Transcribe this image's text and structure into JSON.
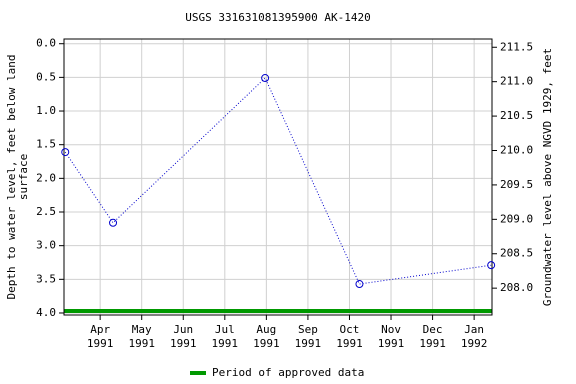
{
  "chart_data": {
    "type": "line",
    "title": "USGS 331631081395900 AK-1420",
    "y_label": [
      "Depth to water level, feet below land",
      "surface"
    ],
    "y2_label": "Groundwater level above NGVD 1929, feet",
    "x": [
      3.16,
      4.31,
      7.97,
      10.24,
      13.41
    ],
    "series": [
      {
        "name": "Depth to water level",
        "color": "#0000cc",
        "values": [
          1.61,
          2.66,
          0.51,
          3.57,
          3.29
        ]
      }
    ],
    "xlim": [
      3.13,
      13.43
    ],
    "xticks": [
      {
        "value": 4,
        "label": [
          "Apr",
          "1991"
        ]
      },
      {
        "value": 5,
        "label": [
          "May",
          "1991"
        ]
      },
      {
        "value": 6,
        "label": [
          "Jun",
          "1991"
        ]
      },
      {
        "value": 7,
        "label": [
          "Jul",
          "1991"
        ]
      },
      {
        "value": 8,
        "label": [
          "Aug",
          "1991"
        ]
      },
      {
        "value": 9,
        "label": [
          "Sep",
          "1991"
        ]
      },
      {
        "value": 10,
        "label": [
          "Oct",
          "1991"
        ]
      },
      {
        "value": 11,
        "label": [
          "Nov",
          "1991"
        ]
      },
      {
        "value": 12,
        "label": [
          "Dec",
          "1991"
        ]
      },
      {
        "value": 13,
        "label": [
          "Jan",
          "1992"
        ]
      }
    ],
    "ylim": [
      4.03,
      -0.07
    ],
    "yticks": [
      {
        "value": 0,
        "label": "0.0"
      },
      0.5,
      {
        "value": 1,
        "label": "1.0"
      },
      1.5,
      {
        "value": 2,
        "label": "2.0"
      },
      2.5,
      {
        "value": 3,
        "label": "3.0"
      },
      3.5,
      {
        "value": 4,
        "label": "4.0"
      }
    ],
    "y2lim": [
      207.61,
      211.62
    ],
    "y2ticks": [
      {
        "value": 208,
        "label": "208.0"
      },
      208.5,
      {
        "value": 209,
        "label": "209.0"
      },
      209.5,
      {
        "value": 210,
        "label": "210.0"
      },
      210.5,
      {
        "value": 211,
        "label": "211.0"
      },
      211.5
    ],
    "grid": true,
    "approved_period": {
      "name": "Period of approved data",
      "color": "#009900",
      "range": [
        3.13,
        13.43
      ]
    }
  }
}
